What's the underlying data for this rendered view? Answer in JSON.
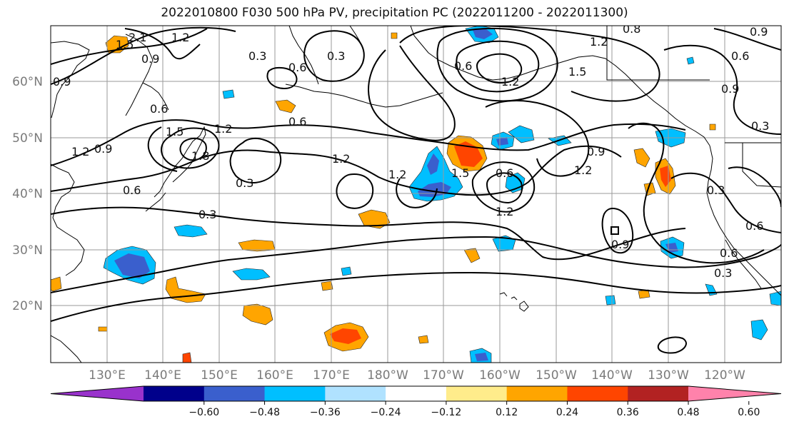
{
  "title": "2022010800 F030 500 hPa PV, precipitation PC (2022011200 - 2022011300)",
  "lat_labels": [
    "60°N",
    "50°N",
    "40°N",
    "30°N",
    "20°N"
  ],
  "lon_labels": [
    "130°E",
    "140°E",
    "150°E",
    "160°E",
    "170°E",
    "180°W",
    "170°W",
    "160°W",
    "150°W",
    "140°W",
    "130°W",
    "120°W"
  ],
  "contour_labels": [
    "2.1",
    "1.5",
    "0.9",
    "1.2",
    "0.3",
    "0.3",
    "0.6",
    "0.6",
    "0.6",
    "1.5",
    "1.2",
    "1.8",
    "1.2",
    "0.9",
    "0.6",
    "0.3",
    "0.3",
    "1.2",
    "1.2",
    "0.6",
    "1.2",
    "1.5",
    "0.9",
    "1.2",
    "0.9",
    "0.6",
    "0.3",
    "0.3",
    "0.6",
    "0.6",
    "0.9",
    "0.3",
    "0.8",
    "1.5",
    "1.2",
    "0.9",
    "0.6",
    "1.2",
    "0.9"
  ],
  "colorbar": {
    "ticks": [
      "−0.60",
      "−0.48",
      "−0.36",
      "−0.24",
      "−0.12",
      "0.12",
      "0.24",
      "0.36",
      "0.48",
      "0.60"
    ],
    "colors": [
      "#9932cc",
      "#00008b",
      "#3a5fcd",
      "#00bfff",
      "#b0e2ff",
      "#ffffff",
      "#ffec8b",
      "#ffa500",
      "#ff4500",
      "#b22222",
      "#ff82ab"
    ]
  }
}
